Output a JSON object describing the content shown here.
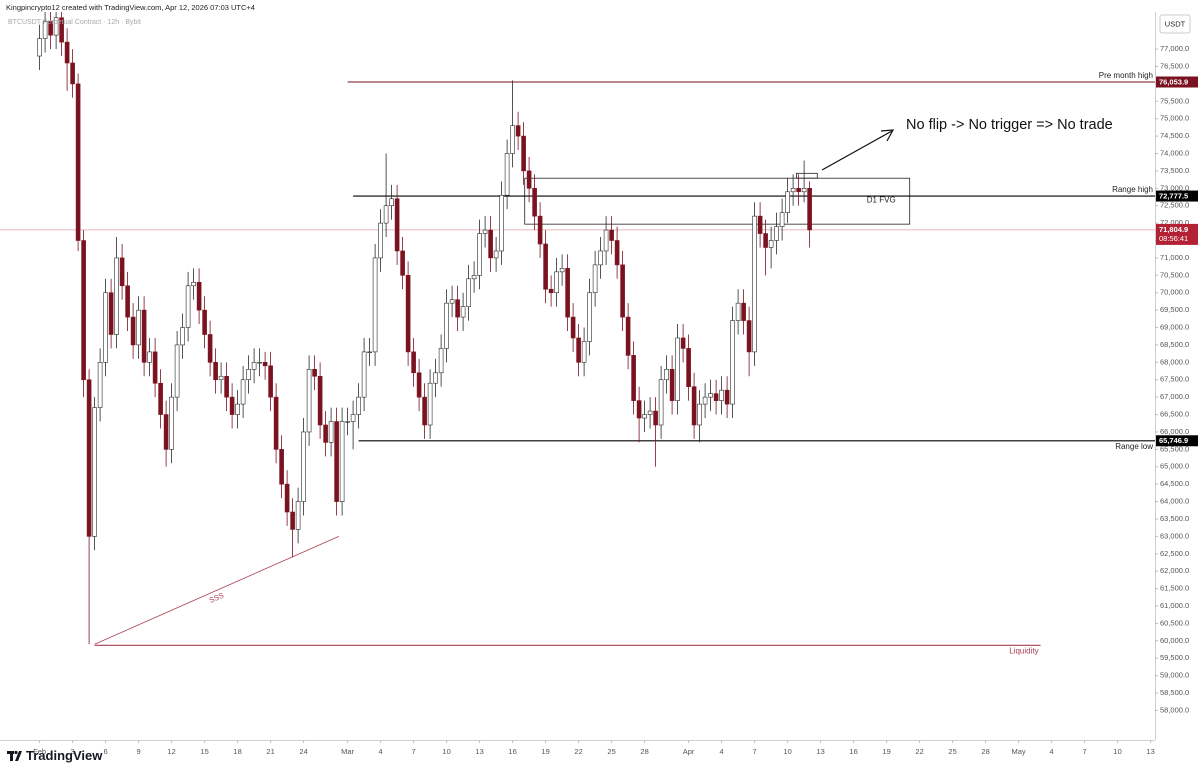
{
  "header": {
    "attribution": "Kingpincrypto12 created with TradingView.com, Apr 12, 2026 07:03 UTC+4",
    "symbol": "BTCUSDT Perpetual Contract · 12h · Bybit"
  },
  "chart_data": {
    "type": "candlestick",
    "currency": "USDT",
    "x": [
      0,
      0.5,
      1,
      1.5,
      2,
      2.5,
      3,
      3.5,
      4,
      4.5,
      5,
      5.5,
      6,
      6.5,
      7,
      7.5,
      8,
      8.5,
      9,
      9.5,
      10,
      10.5,
      11,
      11.5,
      12,
      12.5,
      13,
      13.5,
      14,
      14.5,
      15,
      15.5,
      16,
      16.5,
      17,
      17.5,
      18,
      18.5,
      19,
      19.5,
      20,
      20.5,
      21,
      21.5,
      22,
      22.5,
      23,
      23.5,
      24,
      24.5,
      25,
      25.5,
      26,
      26.5,
      27,
      27.5,
      28,
      28.5,
      29,
      29.5,
      30,
      30.5,
      31,
      31.5,
      32,
      32.5,
      33,
      33.5,
      34,
      34.5,
      35,
      35.5,
      36,
      36.5,
      37,
      37.5,
      38,
      38.5,
      39,
      39.5,
      40,
      40.5,
      41,
      41.5,
      42,
      42.5,
      43,
      43.5,
      44,
      44.5,
      45,
      45.5,
      46,
      46.5,
      47,
      47.5,
      48,
      48.5,
      49,
      49.5,
      50,
      50.5,
      51,
      51.5,
      52,
      52.5,
      53,
      53.5,
      54,
      54.5,
      55,
      55.5,
      56,
      56.5,
      57,
      57.5,
      58,
      58.5,
      59,
      59.5,
      60,
      60.5,
      61,
      61.5,
      62,
      62.5,
      63,
      63.5,
      64,
      64.5,
      65,
      65.5,
      66,
      66.5,
      67,
      67.5,
      68,
      68.5,
      69,
      69.5,
      70
    ],
    "open": [
      76800,
      77300,
      77800,
      77400,
      77900,
      77200,
      76600,
      76000,
      71500,
      67500,
      63000,
      66700,
      68000,
      70000,
      68800,
      71000,
      70200,
      69300,
      68500,
      69500,
      68000,
      68300,
      67400,
      66500,
      65500,
      67000,
      68500,
      69000,
      70200,
      70300,
      69500,
      68800,
      68000,
      67500,
      67600,
      67000,
      66500,
      66800,
      67500,
      67800,
      68000,
      68000,
      67900,
      67000,
      65500,
      64500,
      63700,
      63200,
      64000,
      66000,
      67800,
      67600,
      66200,
      65700,
      66300,
      64000,
      66300,
      66300,
      66500,
      67000,
      68300,
      68300,
      71000,
      72000,
      72500,
      72700,
      71200,
      70500,
      68300,
      67700,
      67000,
      66200,
      67400,
      67700,
      68400,
      69700,
      69800,
      69300,
      69600,
      70400,
      70500,
      71700,
      71800,
      71000,
      71200,
      72800,
      74000,
      74800,
      74500,
      73500,
      73000,
      72200,
      71400,
      70100,
      70000,
      70600,
      70700,
      69300,
      68700,
      68000,
      68600,
      70000,
      70800,
      71200,
      71800,
      71500,
      70800,
      69300,
      68200,
      66900,
      66400,
      66500,
      66600,
      66200,
      67500,
      67800,
      66900,
      68700,
      68400,
      67300,
      66200,
      66800,
      67000,
      67100,
      66900,
      67200,
      66800,
      69200,
      69700,
      69200,
      68300,
      72200,
      71700,
      71300,
      71500,
      71900,
      72300,
      72900,
      73000,
      72900,
      73000
    ],
    "high": [
      77700,
      78200,
      78200,
      78300,
      78300,
      77600,
      77000,
      76300,
      71800,
      67800,
      67000,
      68400,
      70400,
      70400,
      71600,
      71400,
      70600,
      69700,
      69900,
      69900,
      68700,
      68700,
      67800,
      66900,
      67400,
      68900,
      69400,
      70600,
      70700,
      70700,
      69900,
      69200,
      68400,
      68000,
      68000,
      67400,
      67200,
      67900,
      68200,
      68400,
      68400,
      68300,
      68300,
      67400,
      65900,
      64900,
      64100,
      64400,
      66400,
      68200,
      68200,
      68000,
      66600,
      66700,
      66700,
      66700,
      66700,
      66900,
      67400,
      68700,
      68700,
      71400,
      72400,
      74000,
      73100,
      73100,
      71600,
      70900,
      68700,
      68100,
      67400,
      67800,
      68100,
      68800,
      70100,
      70200,
      70200,
      70000,
      70800,
      70900,
      72100,
      72200,
      72200,
      71600,
      73200,
      74400,
      76100,
      75200,
      74900,
      73900,
      73400,
      72600,
      71800,
      70500,
      71000,
      71100,
      71100,
      69700,
      69100,
      69000,
      70400,
      71200,
      71600,
      72200,
      72200,
      71900,
      71200,
      69700,
      68600,
      67300,
      66900,
      67000,
      67000,
      67900,
      68200,
      68200,
      69100,
      69100,
      68800,
      67700,
      67200,
      67400,
      67500,
      67500,
      67600,
      67600,
      69600,
      70100,
      70100,
      69600,
      72600,
      72600,
      72100,
      71900,
      72300,
      72700,
      73300,
      73400,
      73400,
      73800,
      73200
    ],
    "low": [
      76400,
      76900,
      77000,
      77000,
      76800,
      75800,
      75600,
      71200,
      67000,
      59900,
      62600,
      66300,
      67600,
      68400,
      68400,
      69800,
      68900,
      68100,
      68100,
      67600,
      67600,
      67000,
      66100,
      65000,
      65100,
      66600,
      68100,
      68600,
      69800,
      69100,
      68400,
      67600,
      67100,
      67100,
      66600,
      66100,
      66100,
      66400,
      67100,
      67400,
      67600,
      67500,
      66600,
      65100,
      64100,
      63300,
      62400,
      62800,
      63600,
      65600,
      67200,
      65800,
      65300,
      65300,
      63600,
      63600,
      65900,
      65500,
      66100,
      66600,
      67900,
      67900,
      70600,
      71600,
      72100,
      70800,
      70100,
      67900,
      67300,
      66600,
      65800,
      65800,
      67000,
      67300,
      68000,
      69300,
      68900,
      68900,
      69200,
      70000,
      70100,
      71300,
      70600,
      70600,
      70800,
      72400,
      73600,
      74100,
      73100,
      72600,
      71800,
      71000,
      69700,
      69600,
      69600,
      70200,
      68900,
      68300,
      67600,
      67600,
      68200,
      69600,
      70400,
      70800,
      71100,
      70400,
      68900,
      67800,
      66500,
      65700,
      66000,
      66100,
      65000,
      65800,
      67100,
      66500,
      66500,
      68000,
      66900,
      65800,
      65700,
      66400,
      66600,
      66500,
      66500,
      66400,
      66400,
      68800,
      68800,
      67600,
      67900,
      71300,
      70500,
      70700,
      71100,
      71500,
      72000,
      72500,
      72500,
      72600,
      71300
    ],
    "close": [
      77300,
      77800,
      77400,
      77900,
      77200,
      76600,
      76000,
      71500,
      67500,
      63000,
      66700,
      68000,
      70000,
      68800,
      71000,
      70200,
      69300,
      68500,
      69500,
      68000,
      68300,
      67400,
      66500,
      65500,
      67000,
      68500,
      69000,
      70200,
      70300,
      69500,
      68800,
      68000,
      67500,
      67600,
      67000,
      66500,
      66800,
      67500,
      67800,
      68000,
      68000,
      67900,
      67000,
      65500,
      64500,
      63700,
      63200,
      64000,
      66000,
      67800,
      67600,
      66200,
      65700,
      66300,
      64000,
      66300,
      66300,
      66500,
      67000,
      68300,
      68300,
      71000,
      72000,
      72500,
      72700,
      71200,
      70500,
      68300,
      67700,
      67000,
      66200,
      67400,
      67700,
      68400,
      69700,
      69800,
      69300,
      69600,
      70400,
      70500,
      71700,
      71800,
      71000,
      71200,
      72800,
      74000,
      74800,
      74500,
      73500,
      73000,
      72200,
      71400,
      70100,
      70000,
      70600,
      70700,
      69300,
      68700,
      68000,
      68600,
      70000,
      70800,
      71200,
      71800,
      71500,
      70800,
      69300,
      68200,
      66900,
      66400,
      66500,
      66600,
      66200,
      67500,
      67800,
      66900,
      68700,
      68400,
      67300,
      66200,
      66800,
      67000,
      67100,
      66900,
      67200,
      66800,
      69200,
      69700,
      69200,
      68300,
      72200,
      71700,
      71300,
      71500,
      71900,
      72300,
      72900,
      73000,
      72900,
      73000,
      71804.9
    ],
    "up_color": "#ffffff",
    "down_color": "#7a1220",
    "outline_color": "#2a2a2a",
    "xlim": [
      -3.6,
      101.4
    ],
    "xticks": [
      {
        "value": 0,
        "label": "Feb"
      },
      3,
      6,
      9,
      12,
      15,
      18,
      21,
      24,
      {
        "value": 28,
        "label": "Mar"
      },
      {
        "value": 31,
        "label": "4"
      },
      {
        "value": 34,
        "label": "7"
      },
      {
        "value": 37,
        "label": "10"
      },
      {
        "value": 40,
        "label": "13"
      },
      {
        "value": 43,
        "label": "16"
      },
      {
        "value": 46,
        "label": "19"
      },
      {
        "value": 49,
        "label": "22"
      },
      {
        "value": 52,
        "label": "25"
      },
      {
        "value": 55,
        "label": "28"
      },
      {
        "value": 59,
        "label": "Apr"
      },
      {
        "value": 62,
        "label": "4"
      },
      {
        "value": 65,
        "label": "7"
      },
      {
        "value": 68,
        "label": "10"
      },
      {
        "value": 71,
        "label": "13"
      },
      {
        "value": 74,
        "label": "16"
      },
      {
        "value": 77,
        "label": "19"
      },
      {
        "value": 80,
        "label": "22"
      },
      {
        "value": 83,
        "label": "25"
      },
      {
        "value": 86,
        "label": "28"
      },
      {
        "value": 89,
        "label": "May"
      },
      {
        "value": 92,
        "label": "4"
      },
      {
        "value": 95,
        "label": "7"
      },
      {
        "value": 98,
        "label": "10"
      },
      {
        "value": 101,
        "label": "13"
      }
    ],
    "ylim": [
      57150,
      78180
    ],
    "yticks": [
      {
        "value": 58000,
        "label": "58,000.0"
      },
      {
        "value": 58500,
        "label": "58,500.0"
      },
      {
        "value": 59000,
        "label": "59,000.0"
      },
      {
        "value": 59500,
        "label": "59,500.0"
      },
      {
        "value": 60000,
        "label": "60,000.0"
      },
      {
        "value": 60500,
        "label": "60,500.0"
      },
      {
        "value": 61000,
        "label": "61,000.0"
      },
      {
        "value": 61500,
        "label": "61,500.0"
      },
      {
        "value": 62000,
        "label": "62,000.0"
      },
      {
        "value": 62500,
        "label": "62,500.0"
      },
      {
        "value": 63000,
        "label": "63,000.0"
      },
      {
        "value": 63500,
        "label": "63,500.0"
      },
      {
        "value": 64000,
        "label": "64,000.0"
      },
      {
        "value": 64500,
        "label": "64,500.0"
      },
      {
        "value": 65000,
        "label": "65,000.0"
      },
      {
        "value": 65500,
        "label": "65,500.0"
      },
      {
        "value": 66000,
        "label": "66,000.0"
      },
      {
        "value": 66500,
        "label": "66,500.0"
      },
      {
        "value": 67000,
        "label": "67,000.0"
      },
      {
        "value": 67500,
        "label": "67,500.0"
      },
      {
        "value": 68000,
        "label": "68,000.0"
      },
      {
        "value": 68500,
        "label": "68,500.0"
      },
      {
        "value": 69000,
        "label": "69,000.0"
      },
      {
        "value": 69500,
        "label": "69,500.0"
      },
      {
        "value": 70000,
        "label": "70,000.0"
      },
      {
        "value": 70500,
        "label": "70,500.0"
      },
      {
        "value": 71000,
        "label": "71,000.0"
      },
      {
        "value": 71500,
        "label": "71,500.0"
      },
      {
        "value": 72000,
        "label": "72,000.0"
      },
      {
        "value": 72500,
        "label": "72,500.0"
      },
      {
        "value": 73000,
        "label": "73,000.0"
      },
      {
        "value": 73500,
        "label": "73,500.0"
      },
      {
        "value": 74000,
        "label": "74,000.0"
      },
      {
        "value": 74500,
        "label": "74,500.0"
      },
      {
        "value": 75000,
        "label": "75,000.0"
      },
      {
        "value": 75500,
        "label": "75,500.0"
      },
      {
        "value": 76000,
        "label": "76,000.0"
      },
      {
        "value": 76500,
        "label": "76,500.0"
      },
      {
        "value": 77000,
        "label": "77,000.0"
      }
    ],
    "levels": [
      {
        "name": "Pre month high",
        "value": 76053.9,
        "label": "76,053.9",
        "color": "#7a1220",
        "from": 28
      },
      {
        "name": "Range high",
        "value": 72777.5,
        "label": "72,777.5",
        "color": "#000000",
        "from": 28.5
      },
      {
        "name": "Range low",
        "value": 65746.9,
        "label": "65,746.9",
        "color": "#000000",
        "from": 29
      },
      {
        "name": "Liquidity",
        "value": 59870,
        "color": "#a8404f",
        "from": 5,
        "to": 91
      }
    ],
    "last_price": {
      "value": 71804.9,
      "label": "71,804.9",
      "countdown": "08:56:41",
      "color": "#b22234"
    },
    "zones": [
      {
        "label": "D1 FVG",
        "top": 73290,
        "bottom": 71970,
        "from": 44.1,
        "to": 79.1
      },
      {
        "top": 73430,
        "bottom": 73290,
        "from": 68.8,
        "to": 70.7
      }
    ],
    "trendlines": [
      {
        "label": "SSS",
        "from": [
          5,
          59900
        ],
        "to": [
          27.2,
          63000
        ],
        "color": "#a8404f"
      }
    ],
    "note": "No flip -> No trigger => No trade"
  },
  "footer": {
    "brand": "TradingView"
  }
}
